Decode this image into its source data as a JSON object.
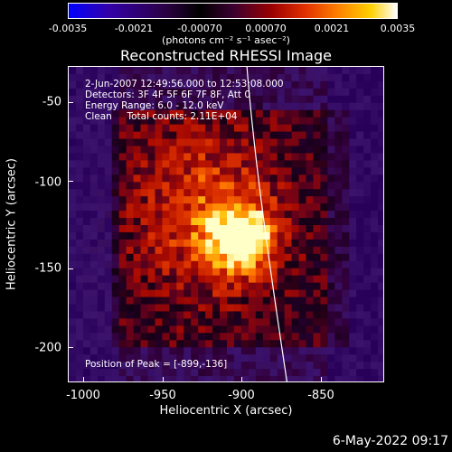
{
  "colorbar": {
    "labels": [
      "-0.0035",
      "-0.0021",
      "-0.00070",
      "0.00070",
      "0.0021",
      "0.0035"
    ],
    "units": "(photons cm⁻² s⁻¹ asec⁻²)"
  },
  "title": "Reconstructed RHESSI Image",
  "info": {
    "line1": "2-Jun-2007 12:49:56.000 to 12:53:08.000",
    "line2": "Detectors: 3F 4F 5F 6F 7F 8F, Att 0",
    "line3": "Energy Range: 6.0 - 12.0 keV",
    "line4": "Clean     Total counts: 2.11E+04"
  },
  "peak": "Position of Peak = [-899,-136]",
  "xaxis": {
    "label": "Heliocentric X (arcsec)",
    "ticks": [
      "-1000",
      "-950",
      "-900",
      "-850"
    ]
  },
  "yaxis": {
    "label": "Heliocentric Y (arcsec)",
    "ticks": [
      "-50",
      "-100",
      "-150",
      "-200"
    ]
  },
  "footer": "6-May-2022 09:17",
  "colors": {
    "background": "#000000",
    "text": "#ffffff"
  }
}
